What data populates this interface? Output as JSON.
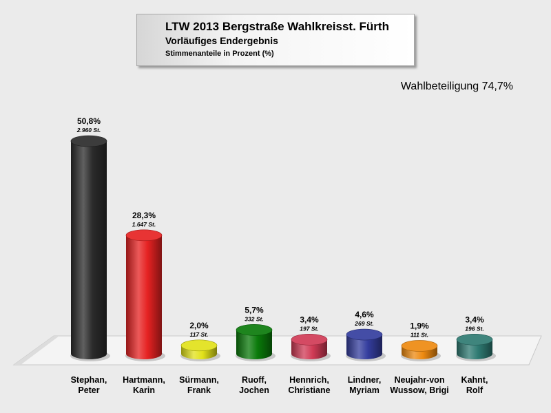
{
  "header": {
    "title": "LTW 2013 Bergstraße Wahlkreisst. Fürth",
    "subtitle": "Vorläufiges Endergebnis",
    "subtitle2": "Stimmenanteile in Prozent (%)"
  },
  "turnout": "Wahlbeteiligung 74,7%",
  "chart_data": {
    "type": "bar",
    "title": "LTW 2013 Bergstraße Wahlkreisst. Fürth",
    "subtitle": "Vorläufiges Endergebnis",
    "ylabel": "",
    "xlabel": "",
    "ylim": [
      0,
      55
    ],
    "grid": false,
    "legend": "none",
    "categories": [
      [
        "Stephan,",
        "Peter"
      ],
      [
        "Hartmann,",
        "Karin"
      ],
      [
        "Sürmann,",
        "Frank"
      ],
      [
        "Ruoff,",
        "Jochen"
      ],
      [
        "Hennrich,",
        "Christiane"
      ],
      [
        "Lindner,",
        "Myriam"
      ],
      [
        "Neujahr-von",
        "Wussow, Brigi"
      ],
      [
        "Kahnt,",
        "Rolf"
      ]
    ],
    "values": [
      50.8,
      28.3,
      2.0,
      5.7,
      3.4,
      4.6,
      1.9,
      3.4
    ],
    "value_labels": [
      "50,8%",
      "28,3%",
      "2,0%",
      "5,7%",
      "3,4%",
      "4,6%",
      "1,9%",
      "3,4%"
    ],
    "vote_labels": [
      "2.960 St.",
      "1.647 St.",
      "117 St.",
      "332 St.",
      "197 St.",
      "269 St.",
      "111 St.",
      "196 St."
    ],
    "colors": [
      "#2b2b2b",
      "#e62222",
      "#e2e21a",
      "#0a7a0a",
      "#d03a55",
      "#343d9e",
      "#ee8a10",
      "#2e7a72"
    ]
  }
}
